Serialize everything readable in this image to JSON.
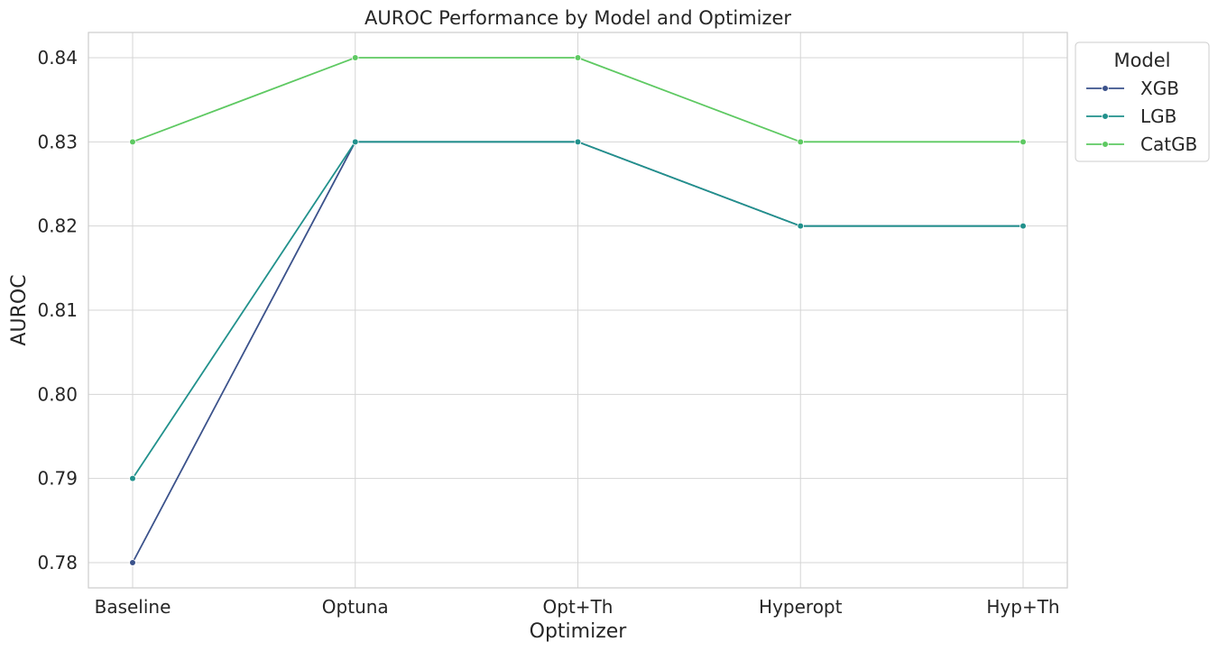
{
  "chart_data": {
    "type": "line",
    "title": "AUROC Performance by Model and Optimizer",
    "xlabel": "Optimizer",
    "ylabel": "AUROC",
    "categories": [
      "Baseline",
      "Optuna",
      "Opt+Th",
      "Hyperopt",
      "Hyp+Th"
    ],
    "ylim": [
      0.777,
      0.843
    ],
    "yticks": [
      0.78,
      0.79,
      0.8,
      0.81,
      0.82,
      0.83,
      0.84
    ],
    "ytick_labels": [
      "0.78",
      "0.79",
      "0.80",
      "0.81",
      "0.82",
      "0.83",
      "0.84"
    ],
    "grid": true,
    "legend": {
      "title": "Model",
      "placement": "outside-upper-right"
    },
    "series": [
      {
        "name": "XGB",
        "color": "#3b528b",
        "values": [
          0.78,
          0.83,
          0.83,
          0.82,
          0.82
        ]
      },
      {
        "name": "LGB",
        "color": "#21918c",
        "values": [
          0.79,
          0.83,
          0.83,
          0.82,
          0.82
        ]
      },
      {
        "name": "CatGB",
        "color": "#5ec962",
        "values": [
          0.83,
          0.84,
          0.84,
          0.83,
          0.83
        ]
      }
    ]
  }
}
